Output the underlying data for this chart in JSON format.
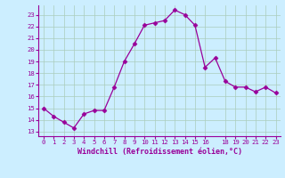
{
  "x": [
    0,
    1,
    2,
    3,
    4,
    5,
    6,
    7,
    8,
    9,
    10,
    11,
    12,
    13,
    14,
    15,
    16,
    17,
    18,
    19,
    20,
    21,
    22,
    23
  ],
  "y": [
    15.0,
    14.3,
    13.8,
    13.3,
    14.5,
    14.8,
    14.8,
    16.8,
    19.0,
    20.5,
    22.1,
    22.3,
    22.5,
    23.4,
    23.0,
    22.1,
    18.5,
    19.3,
    17.3,
    16.8,
    16.8,
    16.4,
    16.8,
    16.3
  ],
  "line_color": "#990099",
  "marker": "D",
  "marker_size": 2.5,
  "bg_color": "#cceeff",
  "grid_color": "#aaccbb",
  "xlabel": "Windchill (Refroidissement éolien,°C)",
  "xlabel_color": "#990099",
  "tick_color": "#990099",
  "yticks": [
    13,
    14,
    15,
    16,
    17,
    18,
    19,
    20,
    21,
    22,
    23
  ],
  "xticks": [
    0,
    1,
    2,
    3,
    4,
    5,
    6,
    7,
    8,
    9,
    10,
    11,
    12,
    13,
    14,
    15,
    16,
    18,
    19,
    20,
    21,
    22,
    23
  ],
  "ylim": [
    12.6,
    23.8
  ],
  "xlim": [
    -0.5,
    23.5
  ]
}
